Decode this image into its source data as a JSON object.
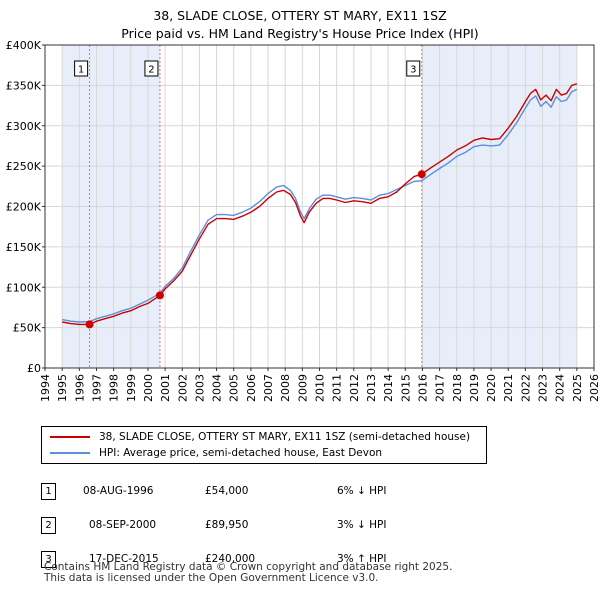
{
  "title": {
    "line1": "38, SLADE CLOSE, OTTERY ST MARY, EX11 1SZ",
    "line2": "Price paid vs. HM Land Registry's House Price Index (HPI)"
  },
  "colors": {
    "property": "#cc0000",
    "hpi": "#5b8fd9",
    "shade": "#e8eef9",
    "grid": "#d7d7d7",
    "vline": "#e07070"
  },
  "chart_data": {
    "type": "line",
    "title": "38, SLADE CLOSE, OTTERY ST MARY, EX11 1SZ — Price paid vs. HM Land Registry's House Price Index (HPI)",
    "xlabel": "",
    "ylabel": "",
    "xlim": [
      1994,
      2026
    ],
    "ylim": [
      0,
      400000
    ],
    "y_ticks": [
      {
        "value": 0,
        "label": "£0"
      },
      {
        "value": 50000,
        "label": "£50K"
      },
      {
        "value": 100000,
        "label": "£100K"
      },
      {
        "value": 150000,
        "label": "£150K"
      },
      {
        "value": 200000,
        "label": "£200K"
      },
      {
        "value": 250000,
        "label": "£250K"
      },
      {
        "value": 300000,
        "label": "£300K"
      },
      {
        "value": 350000,
        "label": "£350K"
      },
      {
        "value": 400000,
        "label": "£400K"
      }
    ],
    "x_ticks": [
      "1994",
      "1995",
      "1996",
      "1997",
      "1998",
      "1999",
      "2000",
      "2001",
      "2002",
      "2003",
      "2004",
      "2005",
      "2006",
      "2007",
      "2008",
      "2009",
      "2010",
      "2011",
      "2012",
      "2013",
      "2014",
      "2015",
      "2016",
      "2017",
      "2018",
      "2019",
      "2020",
      "2021",
      "2022",
      "2023",
      "2024",
      "2025",
      "2026"
    ],
    "grid": true,
    "shaded_ranges": [
      [
        1995.0,
        1996.6
      ],
      [
        1996.6,
        2000.7
      ],
      [
        2015.96,
        2025.0
      ]
    ],
    "series": [
      {
        "name": "38, SLADE CLOSE, OTTERY ST MARY, EX11 1SZ (semi-detached house)",
        "color": "#cc0000",
        "x": [
          1995.0,
          1995.5,
          1996.0,
          1996.6,
          1997.0,
          1997.5,
          1998.0,
          1998.5,
          1999.0,
          1999.5,
          2000.0,
          2000.7,
          2001.0,
          2001.5,
          2002.0,
          2002.5,
          2003.0,
          2003.5,
          2004.0,
          2004.5,
          2005.0,
          2005.5,
          2006.0,
          2006.5,
          2007.0,
          2007.5,
          2007.9,
          2008.3,
          2008.6,
          2008.9,
          2009.1,
          2009.4,
          2009.8,
          2010.2,
          2010.6,
          2011.0,
          2011.5,
          2012.0,
          2012.5,
          2013.0,
          2013.5,
          2014.0,
          2014.5,
          2015.0,
          2015.5,
          2015.96,
          2016.5,
          2017.0,
          2017.5,
          2018.0,
          2018.5,
          2019.0,
          2019.5,
          2020.0,
          2020.5,
          2021.0,
          2021.5,
          2022.0,
          2022.3,
          2022.6,
          2022.9,
          2023.2,
          2023.5,
          2023.8,
          2024.1,
          2024.4,
          2024.7,
          2025.0
        ],
        "values": [
          57000,
          55000,
          54000,
          54000,
          58000,
          61000,
          64000,
          68000,
          71000,
          76000,
          80000,
          89950,
          98000,
          108000,
          120000,
          140000,
          160000,
          178000,
          185000,
          185000,
          184000,
          188000,
          193000,
          200000,
          210000,
          218000,
          220000,
          215000,
          205000,
          188000,
          180000,
          193000,
          204000,
          210000,
          210000,
          208000,
          205000,
          207000,
          206000,
          204000,
          210000,
          212000,
          218000,
          228000,
          237000,
          240000,
          248000,
          255000,
          262000,
          270000,
          275000,
          282000,
          285000,
          283000,
          284000,
          297000,
          312000,
          330000,
          340000,
          345000,
          332000,
          338000,
          331000,
          345000,
          338000,
          340000,
          350000,
          352000
        ]
      },
      {
        "name": "HPI: Average price, semi-detached house, East Devon",
        "color": "#5b8fd9",
        "x": [
          1995.0,
          1995.5,
          1996.0,
          1996.6,
          1997.0,
          1997.5,
          1998.0,
          1998.5,
          1999.0,
          1999.5,
          2000.0,
          2000.7,
          2001.0,
          2001.5,
          2002.0,
          2002.5,
          2003.0,
          2003.5,
          2004.0,
          2004.5,
          2005.0,
          2005.5,
          2006.0,
          2006.5,
          2007.0,
          2007.5,
          2007.9,
          2008.3,
          2008.6,
          2008.9,
          2009.1,
          2009.4,
          2009.8,
          2010.2,
          2010.6,
          2011.0,
          2011.5,
          2012.0,
          2012.5,
          2013.0,
          2013.5,
          2014.0,
          2014.5,
          2015.0,
          2015.5,
          2015.96,
          2016.5,
          2017.0,
          2017.5,
          2018.0,
          2018.5,
          2019.0,
          2019.5,
          2020.0,
          2020.5,
          2021.0,
          2021.5,
          2022.0,
          2022.3,
          2022.6,
          2022.9,
          2023.2,
          2023.5,
          2023.8,
          2024.1,
          2024.4,
          2024.7,
          2025.0
        ],
        "values": [
          60000,
          58000,
          57000,
          57500,
          61000,
          64000,
          67000,
          71000,
          74000,
          79000,
          84000,
          92500,
          101000,
          111000,
          124000,
          145000,
          165000,
          183000,
          190000,
          190000,
          189000,
          193000,
          198000,
          206000,
          216000,
          224000,
          226000,
          220000,
          210000,
          193000,
          185000,
          197000,
          209000,
          214000,
          214000,
          212000,
          209000,
          211000,
          210000,
          208000,
          214000,
          216000,
          221000,
          226000,
          231000,
          232000,
          240000,
          247000,
          254000,
          262000,
          267000,
          274000,
          276000,
          275000,
          276000,
          289000,
          304000,
          322000,
          332000,
          337000,
          324000,
          330000,
          323000,
          336000,
          330000,
          332000,
          342000,
          345000
        ]
      }
    ],
    "sales": [
      {
        "label": "1",
        "x": 1996.6,
        "value": 54000
      },
      {
        "label": "2",
        "x": 2000.7,
        "value": 89950
      },
      {
        "label": "3",
        "x": 2015.96,
        "value": 240000
      }
    ]
  },
  "legend": {
    "property": "38, SLADE CLOSE, OTTERY ST MARY, EX11 1SZ (semi-detached house)",
    "hpi": "HPI: Average price, semi-detached house, East Devon"
  },
  "sales_table": [
    {
      "num": "1",
      "date": "08-AUG-1996",
      "price": "£54,000",
      "hpi": "6% ↓ HPI"
    },
    {
      "num": "2",
      "date": "08-SEP-2000",
      "price": "£89,950",
      "hpi": "3% ↓ HPI"
    },
    {
      "num": "3",
      "date": "17-DEC-2015",
      "price": "£240,000",
      "hpi": "3% ↑ HPI"
    }
  ],
  "footer": {
    "line1": "Contains HM Land Registry data © Crown copyright and database right 2025.",
    "line2": "This data is licensed under the Open Government Licence v3.0."
  }
}
